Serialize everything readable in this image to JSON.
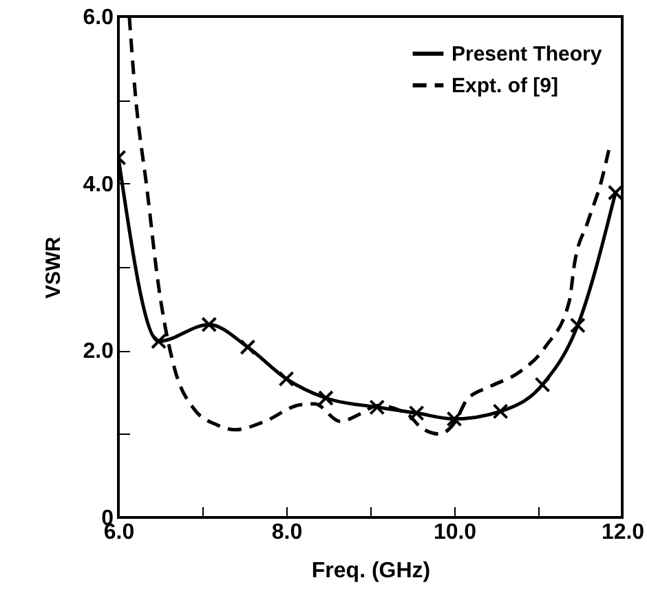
{
  "chart_data": {
    "type": "line",
    "xlabel": "Freq. (GHz)",
    "ylabel": "VSWR",
    "series": [
      {
        "name": "Present Theory",
        "color": "#000000",
        "line_style": "solid",
        "marker": "cross",
        "x": [
          6.0,
          6.48,
          7.08,
          7.54,
          8.0,
          8.47,
          9.08,
          9.55,
          10.0,
          10.55,
          11.05,
          11.47,
          11.92
        ],
        "values": [
          4.31,
          2.11,
          2.31,
          2.04,
          1.66,
          1.43,
          1.32,
          1.25,
          1.18,
          1.27,
          1.59,
          2.3,
          3.89
        ]
      },
      {
        "name": "Expt. of [9]",
        "color": "#000000",
        "line_style": "dashed",
        "marker": "none",
        "x": [
          6.13,
          6.2,
          6.34,
          6.48,
          6.67,
          6.9,
          7.17,
          7.39,
          7.72,
          8.17,
          8.34,
          8.64,
          8.88,
          9.08,
          9.44,
          9.6,
          9.82,
          10.02,
          10.15,
          10.43,
          10.76,
          11.09,
          11.37,
          11.43,
          11.59,
          11.76,
          11.84
        ],
        "values": [
          6.0,
          5.09,
          3.94,
          2.76,
          1.78,
          1.3,
          1.11,
          1.05,
          1.14,
          1.35,
          1.36,
          1.15,
          1.24,
          1.34,
          1.24,
          1.08,
          1.0,
          1.16,
          1.41,
          1.57,
          1.73,
          2.05,
          2.59,
          3.03,
          3.54,
          4.06,
          4.4
        ]
      }
    ],
    "xlim": [
      6.0,
      12.0
    ],
    "ylim": [
      0,
      6.0
    ],
    "xticks": [
      {
        "value": 6,
        "label": "6.0"
      },
      {
        "value": 7,
        "label": null
      },
      {
        "value": 8,
        "label": "8.0"
      },
      {
        "value": 9,
        "label": null
      },
      {
        "value": 10,
        "label": "10.0"
      },
      {
        "value": 11,
        "label": null
      },
      {
        "value": 12,
        "label": "12.0"
      }
    ],
    "yticks": [
      0,
      {
        "value": 1,
        "label": null
      },
      {
        "value": 2,
        "label": "2.0"
      },
      {
        "value": 3,
        "label": null
      },
      {
        "value": 4,
        "label": "4.0"
      },
      {
        "value": 5,
        "label": null
      },
      {
        "value": 6,
        "label": "6.0"
      }
    ],
    "grid": false,
    "legend": "top right"
  }
}
